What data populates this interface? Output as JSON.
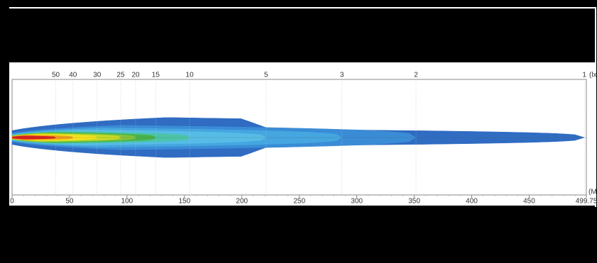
{
  "chart_data": {
    "type": "isolux",
    "top_axis_label": "(lx",
    "x_label": "(M",
    "xlim": [
      0,
      499.75
    ],
    "xticks": [
      0,
      50,
      100,
      150,
      200,
      250,
      300,
      350,
      400,
      450,
      499.75
    ],
    "lux_ticks": [
      {
        "value": 38,
        "label": "50"
      },
      {
        "value": 53,
        "label": "40"
      },
      {
        "value": 74,
        "label": "30"
      },
      {
        "value": 94.5,
        "label": "25"
      },
      {
        "value": 107.5,
        "label": "20"
      },
      {
        "value": 125,
        "label": "15"
      },
      {
        "value": 154.5,
        "label": "10"
      },
      {
        "value": 221,
        "label": "5"
      },
      {
        "value": 287,
        "label": "3"
      },
      {
        "value": 351.5,
        "label": "2"
      },
      {
        "value": 498,
        "label": "1"
      }
    ],
    "colors": [
      "#d81e1e",
      "#f0a018",
      "#f4e41c",
      "#c8dc24",
      "#84c43a",
      "#48b44a",
      "#4cc4a8",
      "#56bce6",
      "#45a6e0",
      "#3a8cd6",
      "#2f6cc2"
    ]
  }
}
